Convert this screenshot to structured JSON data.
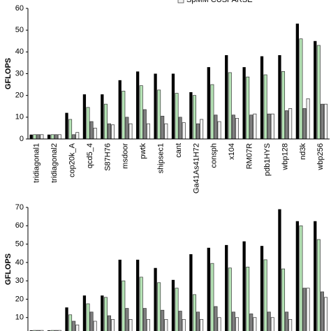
{
  "chart_data": [
    {
      "type": "bar",
      "y_label": "GFLOPS",
      "categories": [
        "tridiagonal1",
        "tridiagonal2",
        "cop20k_A",
        "qcd5_4",
        "S87H76",
        "msdoor",
        "pwtk",
        "shipsec1",
        "cant",
        "Ga41As41H72",
        "consph",
        "x104",
        "RM07R",
        "pdb1HYS",
        "wbp128",
        "nd3k",
        "wbp256"
      ],
      "series": [
        {
          "color": "#000000",
          "values": [
            2,
            2,
            12,
            20.5,
            20.5,
            27,
            31,
            30,
            30,
            21.5,
            33,
            38.5,
            33,
            38,
            38.5,
            53,
            45
          ]
        },
        {
          "color": "#b5e3b5",
          "values": [
            2,
            2,
            9,
            14.5,
            16,
            22,
            24.5,
            22.5,
            21,
            20,
            25,
            30.5,
            28.5,
            29.5,
            31,
            46,
            43
          ]
        },
        {
          "color": "#7f7f7f",
          "values": [
            2,
            2,
            2,
            8,
            7,
            10,
            13.5,
            10.5,
            10,
            7,
            11,
            11,
            11,
            11.5,
            13,
            14,
            16
          ]
        },
        {
          "name": "SpMM CUSPARSE",
          "color": "#f2f2f2",
          "values": [
            2,
            2,
            3,
            5,
            6.5,
            7,
            7,
            7,
            7.5,
            9,
            8,
            9.5,
            11.5,
            11.5,
            14,
            18.5,
            16
          ]
        }
      ],
      "ylim": [
        0,
        60
      ],
      "yticks": [
        0,
        10,
        20,
        30,
        40,
        50,
        60
      ],
      "grid": false
    },
    {
      "type": "bar",
      "y_label": "GFLOPS",
      "categories": [
        null,
        null,
        null,
        null,
        null,
        null,
        null,
        null,
        null,
        null,
        null,
        null,
        null,
        null,
        null,
        null,
        null
      ],
      "series": [
        {
          "color": "#000000",
          "values": [
            3,
            3,
            15.5,
            22,
            22,
            41.5,
            41.5,
            37,
            30.5,
            44.5,
            48,
            49.5,
            51.5,
            49,
            69,
            62.5,
            62.5
          ]
        },
        {
          "color": "#b5e3b5",
          "values": [
            3,
            3,
            11.5,
            17.5,
            21,
            30,
            32,
            29,
            26,
            22.5,
            39.5,
            37,
            37.5,
            41.5,
            36.5,
            60,
            52.5
          ]
        },
        {
          "color": "#7f7f7f",
          "values": [
            3,
            3,
            8,
            13,
            11,
            15,
            15,
            14,
            13.5,
            13,
            16,
            13,
            12,
            13,
            13,
            26,
            24
          ]
        },
        {
          "color": "#f2f2f2",
          "values": [
            3,
            3,
            6,
            8,
            9,
            9,
            9,
            9,
            9,
            9,
            10,
            10,
            10,
            10,
            9,
            26,
            21
          ]
        }
      ],
      "ylim": [
        0,
        70
      ],
      "yticks": [
        10,
        20,
        30,
        40,
        50,
        60,
        70
      ],
      "grid": false
    }
  ]
}
